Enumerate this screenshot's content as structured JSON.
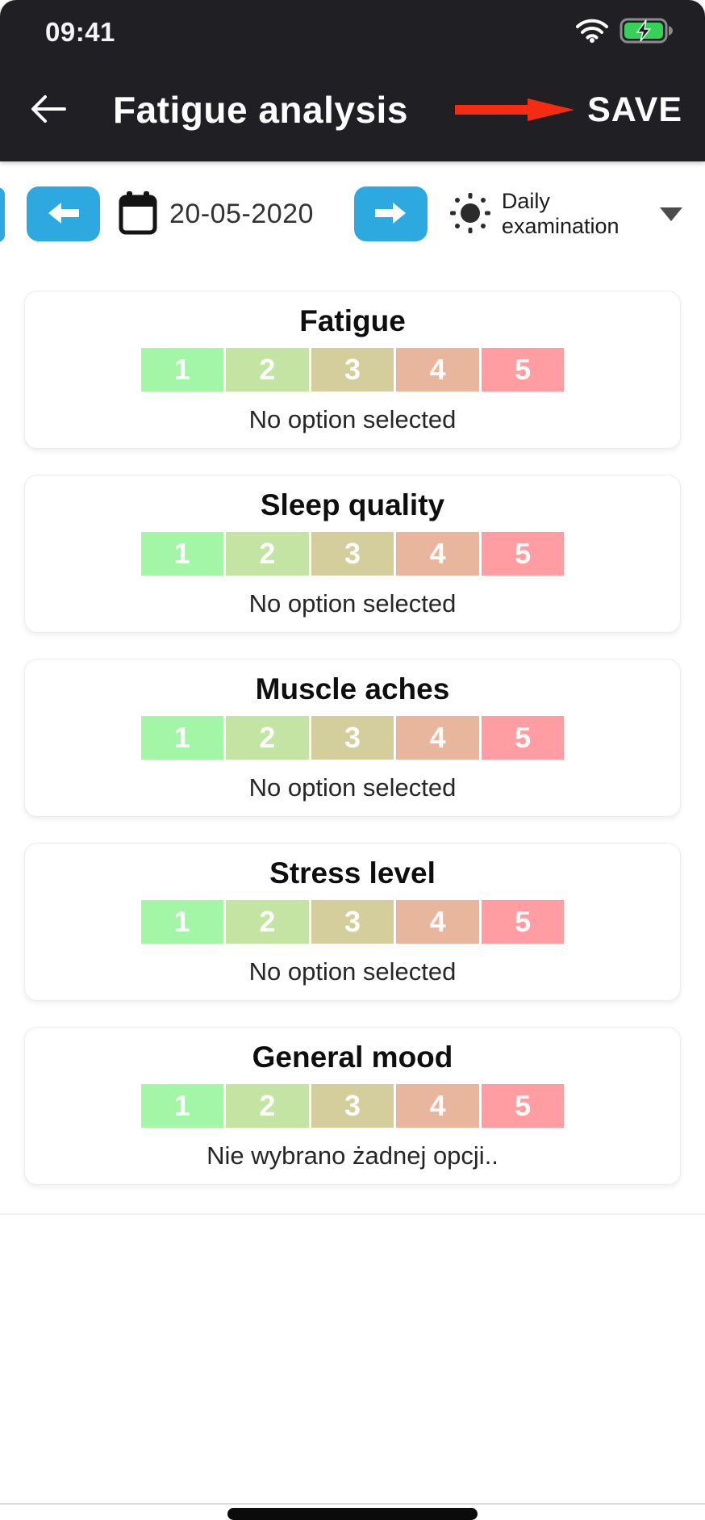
{
  "status_bar": {
    "time": "09:41"
  },
  "header": {
    "title": "Fatigue analysis",
    "save_label": "SAVE"
  },
  "date_nav": {
    "date": "20-05-2020",
    "mode_label": "Daily examination"
  },
  "colors": {
    "accent_blue": "#2ea9e0",
    "annotation_red": "#f32c13",
    "battery_green": "#35d158",
    "header_bg": "#202024"
  },
  "rating_colors": [
    "#a3f6a5",
    "#c4e4a4",
    "#d3ce9c",
    "#e7b69c",
    "#ff9da3"
  ],
  "cards": [
    {
      "title": "Fatigue",
      "options": [
        "1",
        "2",
        "3",
        "4",
        "5"
      ],
      "status": "No option selected"
    },
    {
      "title": "Sleep quality",
      "options": [
        "1",
        "2",
        "3",
        "4",
        "5"
      ],
      "status": "No option selected"
    },
    {
      "title": "Muscle aches",
      "options": [
        "1",
        "2",
        "3",
        "4",
        "5"
      ],
      "status": "No option selected"
    },
    {
      "title": "Stress level",
      "options": [
        "1",
        "2",
        "3",
        "4",
        "5"
      ],
      "status": "No option selected"
    },
    {
      "title": "General mood",
      "options": [
        "1",
        "2",
        "3",
        "4",
        "5"
      ],
      "status": "Nie wybrano żadnej opcji.."
    }
  ]
}
